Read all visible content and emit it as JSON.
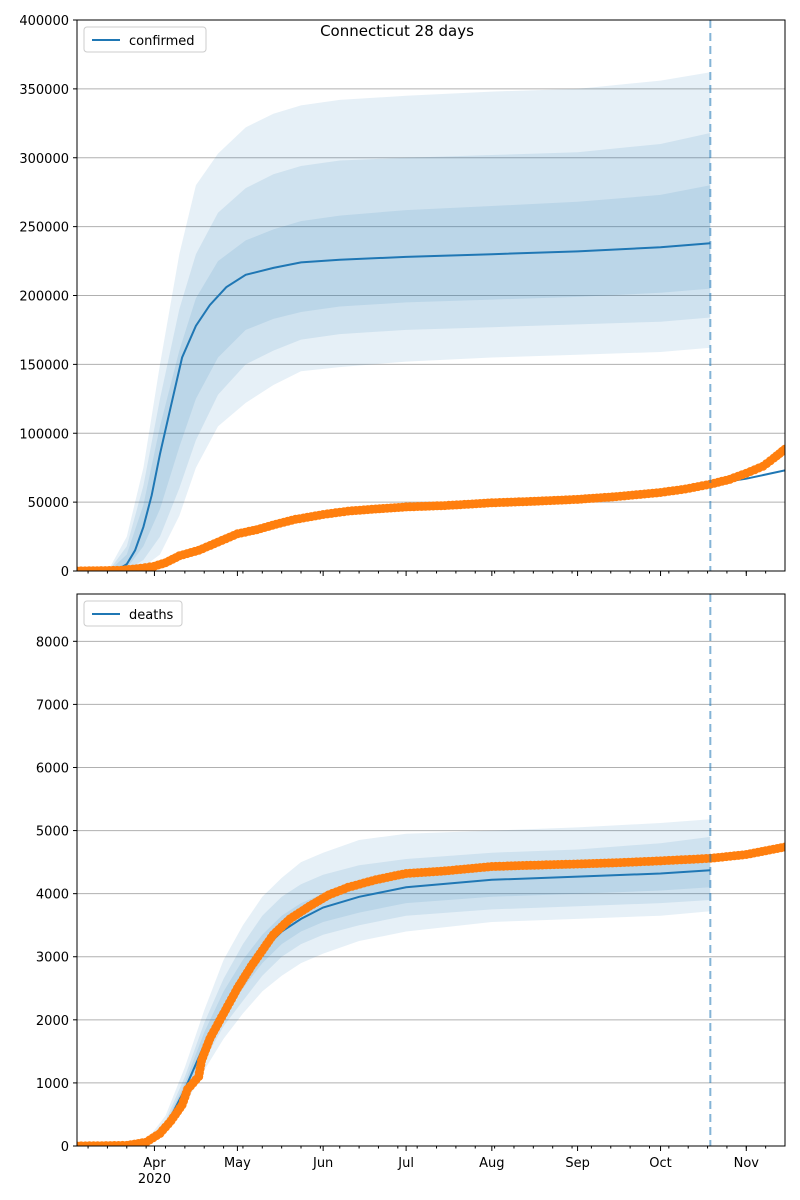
{
  "chart_data": {
    "title": "Connecticut 28 days",
    "type": "line",
    "colors": {
      "model": "#1f77b4",
      "observed": "#ff7f0e",
      "band": "#1f77b4",
      "grid": "#b0b0b0"
    },
    "x_axis": {
      "type": "date",
      "range": [
        "2020-03-04",
        "2020-11-15"
      ],
      "ticks": [
        {
          "date": "2020-04-01",
          "label": "Apr",
          "sublabel": "2020"
        },
        {
          "date": "2020-05-01",
          "label": "May",
          "sublabel": ""
        },
        {
          "date": "2020-06-01",
          "label": "Jun",
          "sublabel": ""
        },
        {
          "date": "2020-07-01",
          "label": "Jul",
          "sublabel": ""
        },
        {
          "date": "2020-08-01",
          "label": "Aug",
          "sublabel": ""
        },
        {
          "date": "2020-09-01",
          "label": "Sep",
          "sublabel": ""
        },
        {
          "date": "2020-10-01",
          "label": "Oct",
          "sublabel": ""
        },
        {
          "date": "2020-11-01",
          "label": "Nov",
          "sublabel": ""
        }
      ],
      "forecast_line_date": "2020-10-19"
    },
    "panels": [
      {
        "name": "confirmed",
        "legend": "confirmed",
        "legend_position": "upper-left",
        "ylim": [
          0,
          400000
        ],
        "yticks": [
          0,
          50000,
          100000,
          150000,
          200000,
          250000,
          300000,
          350000,
          400000
        ],
        "grid": "horizontal",
        "model": [
          [
            "2020-03-04",
            0
          ],
          [
            "2020-03-18",
            0
          ],
          [
            "2020-03-22",
            5000
          ],
          [
            "2020-03-25",
            15000
          ],
          [
            "2020-03-28",
            32000
          ],
          [
            "2020-03-31",
            55000
          ],
          [
            "2020-04-03",
            85000
          ],
          [
            "2020-04-07",
            120000
          ],
          [
            "2020-04-11",
            155000
          ],
          [
            "2020-04-16",
            178000
          ],
          [
            "2020-04-21",
            193000
          ],
          [
            "2020-04-27",
            206000
          ],
          [
            "2020-05-04",
            215000
          ],
          [
            "2020-05-14",
            220000
          ],
          [
            "2020-05-24",
            224000
          ],
          [
            "2020-06-07",
            226000
          ],
          [
            "2020-07-01",
            228000
          ],
          [
            "2020-08-01",
            230000
          ],
          [
            "2020-09-01",
            232000
          ],
          [
            "2020-10-01",
            235000
          ],
          [
            "2020-10-19",
            238000
          ]
        ],
        "band_outer": [
          [
            "2020-03-04",
            0,
            0
          ],
          [
            "2020-03-16",
            0,
            3000
          ],
          [
            "2020-03-22",
            0,
            25000
          ],
          [
            "2020-03-28",
            3000,
            75000
          ],
          [
            "2020-04-03",
            12000,
            150000
          ],
          [
            "2020-04-10",
            40000,
            230000
          ],
          [
            "2020-04-16",
            75000,
            280000
          ],
          [
            "2020-04-24",
            105000,
            303000
          ],
          [
            "2020-05-04",
            122000,
            322000
          ],
          [
            "2020-05-14",
            135000,
            332000
          ],
          [
            "2020-05-24",
            145000,
            338000
          ],
          [
            "2020-06-07",
            148000,
            342000
          ],
          [
            "2020-07-01",
            152000,
            345000
          ],
          [
            "2020-08-01",
            155000,
            348000
          ],
          [
            "2020-09-01",
            157000,
            350000
          ],
          [
            "2020-10-01",
            159000,
            356000
          ],
          [
            "2020-10-19",
            162000,
            362000
          ]
        ],
        "band_mid": [
          [
            "2020-03-04",
            0,
            0
          ],
          [
            "2020-03-16",
            0,
            1500
          ],
          [
            "2020-03-22",
            500,
            18000
          ],
          [
            "2020-03-28",
            8000,
            62000
          ],
          [
            "2020-04-03",
            25000,
            125000
          ],
          [
            "2020-04-10",
            60000,
            190000
          ],
          [
            "2020-04-16",
            95000,
            230000
          ],
          [
            "2020-04-24",
            128000,
            260000
          ],
          [
            "2020-05-04",
            150000,
            278000
          ],
          [
            "2020-05-14",
            160000,
            288000
          ],
          [
            "2020-05-24",
            168000,
            294000
          ],
          [
            "2020-06-07",
            172000,
            298000
          ],
          [
            "2020-07-01",
            175000,
            300000
          ],
          [
            "2020-08-01",
            177000,
            302000
          ],
          [
            "2020-09-01",
            179000,
            304000
          ],
          [
            "2020-10-01",
            181000,
            310000
          ],
          [
            "2020-10-19",
            184000,
            318000
          ]
        ],
        "band_inner": [
          [
            "2020-03-04",
            0,
            0
          ],
          [
            "2020-03-16",
            0,
            700
          ],
          [
            "2020-03-22",
            2000,
            12000
          ],
          [
            "2020-03-28",
            18000,
            48000
          ],
          [
            "2020-04-03",
            45000,
            105000
          ],
          [
            "2020-04-10",
            90000,
            160000
          ],
          [
            "2020-04-16",
            125000,
            198000
          ],
          [
            "2020-04-24",
            155000,
            225000
          ],
          [
            "2020-05-04",
            175000,
            240000
          ],
          [
            "2020-05-14",
            183000,
            248000
          ],
          [
            "2020-05-24",
            188000,
            254000
          ],
          [
            "2020-06-07",
            192000,
            258000
          ],
          [
            "2020-07-01",
            195000,
            262000
          ],
          [
            "2020-08-01",
            197000,
            265000
          ],
          [
            "2020-09-01",
            199000,
            268000
          ],
          [
            "2020-10-01",
            202000,
            273000
          ],
          [
            "2020-10-19",
            205000,
            280000
          ]
        ],
        "model_forecast": [
          [
            "2020-10-19",
            63000
          ],
          [
            "2020-11-01",
            67000
          ],
          [
            "2020-11-15",
            73000
          ]
        ],
        "observed": [
          [
            "2020-03-04",
            0
          ],
          [
            "2020-03-20",
            500
          ],
          [
            "2020-03-27",
            2000
          ],
          [
            "2020-04-01",
            3500
          ],
          [
            "2020-04-05",
            6000
          ],
          [
            "2020-04-10",
            11000
          ],
          [
            "2020-04-17",
            15000
          ],
          [
            "2020-04-24",
            21000
          ],
          [
            "2020-05-01",
            27000
          ],
          [
            "2020-05-08",
            30000
          ],
          [
            "2020-05-15",
            34000
          ],
          [
            "2020-05-22",
            37500
          ],
          [
            "2020-06-01",
            41000
          ],
          [
            "2020-06-10",
            43500
          ],
          [
            "2020-06-20",
            45000
          ],
          [
            "2020-07-01",
            46500
          ],
          [
            "2020-07-15",
            47500
          ],
          [
            "2020-08-01",
            49500
          ],
          [
            "2020-08-15",
            50500
          ],
          [
            "2020-09-01",
            52000
          ],
          [
            "2020-09-15",
            54000
          ],
          [
            "2020-10-01",
            57000
          ],
          [
            "2020-10-10",
            59500
          ],
          [
            "2020-10-19",
            63000
          ],
          [
            "2020-10-26",
            66500
          ],
          [
            "2020-11-01",
            71000
          ],
          [
            "2020-11-07",
            76000
          ],
          [
            "2020-11-11",
            82000
          ],
          [
            "2020-11-15",
            88500
          ]
        ]
      },
      {
        "name": "deaths",
        "legend": "deaths",
        "legend_position": "upper-left",
        "ylim": [
          0,
          8750
        ],
        "yticks": [
          0,
          1000,
          2000,
          3000,
          4000,
          5000,
          6000,
          7000,
          8000
        ],
        "grid": "horizontal",
        "model": [
          [
            "2020-03-04",
            0
          ],
          [
            "2020-03-24",
            20
          ],
          [
            "2020-03-30",
            80
          ],
          [
            "2020-04-05",
            300
          ],
          [
            "2020-04-12",
            900
          ],
          [
            "2020-04-19",
            1600
          ],
          [
            "2020-04-26",
            2200
          ],
          [
            "2020-05-03",
            2700
          ],
          [
            "2020-05-10",
            3100
          ],
          [
            "2020-05-17",
            3400
          ],
          [
            "2020-05-24",
            3600
          ],
          [
            "2020-06-01",
            3780
          ],
          [
            "2020-06-14",
            3950
          ],
          [
            "2020-07-01",
            4100
          ],
          [
            "2020-08-01",
            4220
          ],
          [
            "2020-09-01",
            4270
          ],
          [
            "2020-10-01",
            4320
          ],
          [
            "2020-10-19",
            4370
          ]
        ],
        "band_outer": [
          [
            "2020-03-04",
            0,
            0
          ],
          [
            "2020-03-24",
            10,
            40
          ],
          [
            "2020-03-30",
            50,
            140
          ],
          [
            "2020-04-05",
            200,
            480
          ],
          [
            "2020-04-12",
            650,
            1250
          ],
          [
            "2020-04-19",
            1200,
            2150
          ],
          [
            "2020-04-26",
            1700,
            2950
          ],
          [
            "2020-05-03",
            2100,
            3500
          ],
          [
            "2020-05-10",
            2450,
            3950
          ],
          [
            "2020-05-17",
            2700,
            4250
          ],
          [
            "2020-05-24",
            2900,
            4500
          ],
          [
            "2020-06-01",
            3050,
            4650
          ],
          [
            "2020-06-14",
            3250,
            4850
          ],
          [
            "2020-07-01",
            3400,
            4950
          ],
          [
            "2020-08-01",
            3550,
            5000
          ],
          [
            "2020-09-01",
            3600,
            5050
          ],
          [
            "2020-10-01",
            3650,
            5120
          ],
          [
            "2020-10-19",
            3720,
            5180
          ]
        ],
        "band_mid": [
          [
            "2020-03-04",
            0,
            0
          ],
          [
            "2020-03-24",
            12,
            32
          ],
          [
            "2020-03-30",
            60,
            115
          ],
          [
            "2020-04-05",
            230,
            400
          ],
          [
            "2020-04-12",
            750,
            1100
          ],
          [
            "2020-04-19",
            1350,
            1950
          ],
          [
            "2020-04-26",
            1900,
            2650
          ],
          [
            "2020-05-03",
            2300,
            3200
          ],
          [
            "2020-05-10",
            2700,
            3650
          ],
          [
            "2020-05-17",
            3000,
            3950
          ],
          [
            "2020-05-24",
            3200,
            4150
          ],
          [
            "2020-06-01",
            3350,
            4300
          ],
          [
            "2020-06-14",
            3500,
            4450
          ],
          [
            "2020-07-01",
            3650,
            4550
          ],
          [
            "2020-08-01",
            3750,
            4650
          ],
          [
            "2020-09-01",
            3800,
            4700
          ],
          [
            "2020-10-01",
            3850,
            4800
          ],
          [
            "2020-10-19",
            3900,
            4900
          ]
        ],
        "band_inner": [
          [
            "2020-03-04",
            0,
            0
          ],
          [
            "2020-03-24",
            15,
            27
          ],
          [
            "2020-03-30",
            70,
            100
          ],
          [
            "2020-04-05",
            260,
            350
          ],
          [
            "2020-04-12",
            820,
            1000
          ],
          [
            "2020-04-19",
            1450,
            1800
          ],
          [
            "2020-04-26",
            2050,
            2450
          ],
          [
            "2020-05-03",
            2500,
            2950
          ],
          [
            "2020-05-10",
            2900,
            3350
          ],
          [
            "2020-05-17",
            3200,
            3650
          ],
          [
            "2020-05-24",
            3400,
            3850
          ],
          [
            "2020-06-01",
            3550,
            4000
          ],
          [
            "2020-06-14",
            3700,
            4150
          ],
          [
            "2020-07-01",
            3850,
            4250
          ],
          [
            "2020-08-01",
            3950,
            4380
          ],
          [
            "2020-09-01",
            4000,
            4450
          ],
          [
            "2020-10-01",
            4050,
            4550
          ],
          [
            "2020-10-19",
            4100,
            4600
          ]
        ],
        "model_forecast": [
          [
            "2020-10-19",
            4540
          ],
          [
            "2020-11-01",
            4600
          ],
          [
            "2020-11-15",
            4690
          ]
        ],
        "observed": [
          [
            "2020-03-04",
            0
          ],
          [
            "2020-03-22",
            10
          ],
          [
            "2020-03-29",
            60
          ],
          [
            "2020-04-03",
            200
          ],
          [
            "2020-04-07",
            400
          ],
          [
            "2020-04-11",
            650
          ],
          [
            "2020-04-13",
            900
          ],
          [
            "2020-04-17",
            1100
          ],
          [
            "2020-04-18",
            1350
          ],
          [
            "2020-04-21",
            1700
          ],
          [
            "2020-04-26",
            2100
          ],
          [
            "2020-05-01",
            2500
          ],
          [
            "2020-05-06",
            2850
          ],
          [
            "2020-05-10",
            3100
          ],
          [
            "2020-05-14",
            3350
          ],
          [
            "2020-05-20",
            3600
          ],
          [
            "2020-05-27",
            3800
          ],
          [
            "2020-06-03",
            3980
          ],
          [
            "2020-06-10",
            4100
          ],
          [
            "2020-06-20",
            4220
          ],
          [
            "2020-07-01",
            4320
          ],
          [
            "2020-07-15",
            4360
          ],
          [
            "2020-08-01",
            4430
          ],
          [
            "2020-08-15",
            4450
          ],
          [
            "2020-09-01",
            4470
          ],
          [
            "2020-09-15",
            4490
          ],
          [
            "2020-10-01",
            4520
          ],
          [
            "2020-10-19",
            4560
          ],
          [
            "2020-11-01",
            4620
          ],
          [
            "2020-11-15",
            4740
          ]
        ]
      }
    ]
  }
}
